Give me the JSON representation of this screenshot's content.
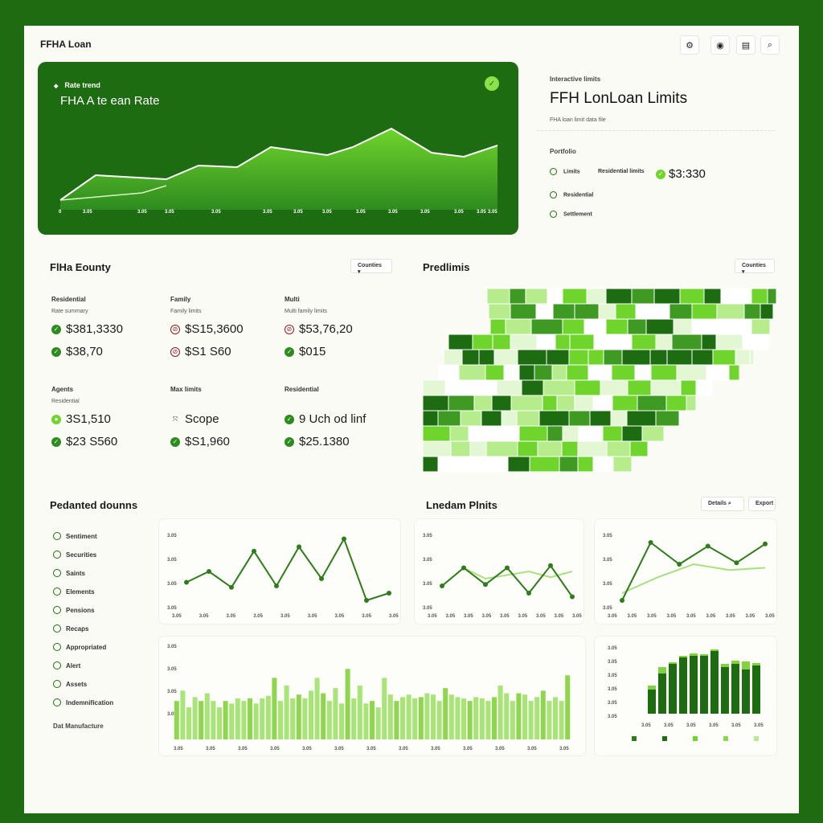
{
  "app": {
    "title": "FFHA Loan"
  },
  "topbar": {
    "icons": [
      "settings-icon",
      "info-icon",
      "document-icon",
      "search-icon"
    ],
    "glyphs": [
      "⚙",
      "◉",
      "▤",
      "⌕"
    ]
  },
  "hero": {
    "subtitle": "Rate trend",
    "title": "FHA A te ean Rate",
    "badge": "✓",
    "x_labels": [
      "0",
      "3.05",
      "3.05",
      "3.05",
      "3.05",
      "3.05",
      "3.05",
      "3.05",
      "3.05",
      "3.05",
      "3.05",
      "3.05",
      "3.05",
      "3.05"
    ]
  },
  "limits_panel": {
    "eyebrow": "Interactive limits",
    "title": "FFH LonLoan Limits",
    "meta": "FHA loan limit data file",
    "section": "Portfolio",
    "rows": [
      {
        "label": "Limits",
        "label2": "Residential limits",
        "value": "$3:330"
      },
      {
        "label": "Residential"
      },
      {
        "label": "Settlement"
      }
    ]
  },
  "county": {
    "title": "FlHa Eounty",
    "dropdown": "Counties",
    "stats": [
      {
        "head": "Residential",
        "sub": "Rate summary",
        "rows": [
          {
            "icon": "check",
            "value": "$381,3330"
          },
          {
            "icon": "check",
            "value": "$38,70"
          }
        ]
      },
      {
        "head": "Family",
        "sub": "Family limits",
        "rows": [
          {
            "icon": "alert",
            "value": "$S15,3600"
          },
          {
            "icon": "alert",
            "value": "$S1 S60"
          }
        ]
      },
      {
        "head": "Multi",
        "sub": "Multi family limits",
        "rows": [
          {
            "icon": "alert",
            "value": "$53,76,20"
          },
          {
            "icon": "check",
            "value": "$015"
          }
        ]
      },
      {
        "head": "Agents",
        "sub": "Residential",
        "rows": [
          {
            "icon": "lime",
            "value": "3S1,510"
          },
          {
            "icon": "check",
            "value": "$23 S560"
          }
        ]
      },
      {
        "head": "Max limits",
        "sub": "",
        "rows": [
          {
            "icon": "scope",
            "value": "Scope"
          },
          {
            "icon": "check",
            "value": "$S1,960"
          }
        ]
      },
      {
        "head": "Residential",
        "sub": "",
        "rows": [
          {
            "icon": "check",
            "value": "9   Uch od linf"
          },
          {
            "icon": "check",
            "value": "$25.1380"
          }
        ]
      }
    ]
  },
  "map": {
    "title": "Predlimis",
    "dropdown": "Counties"
  },
  "trends": {
    "title": "Pedanted dounns",
    "side_items": [
      "Sentiment",
      "Securities",
      "Saints",
      "Elements",
      "Pensions",
      "Recaps",
      "Appropriated",
      "Alert",
      "Assets",
      "Indemnification"
    ],
    "footer": "Dat  Manufacture"
  },
  "lender": {
    "title": "Lnedam Plnits",
    "btn1": "Details",
    "btn2": "Export"
  },
  "colors": {
    "dark": "#1e6c12",
    "mid": "#3f9a23",
    "bright": "#6fd42c",
    "light": "#b6ec8c",
    "pale": "#e4f7d4"
  }
}
